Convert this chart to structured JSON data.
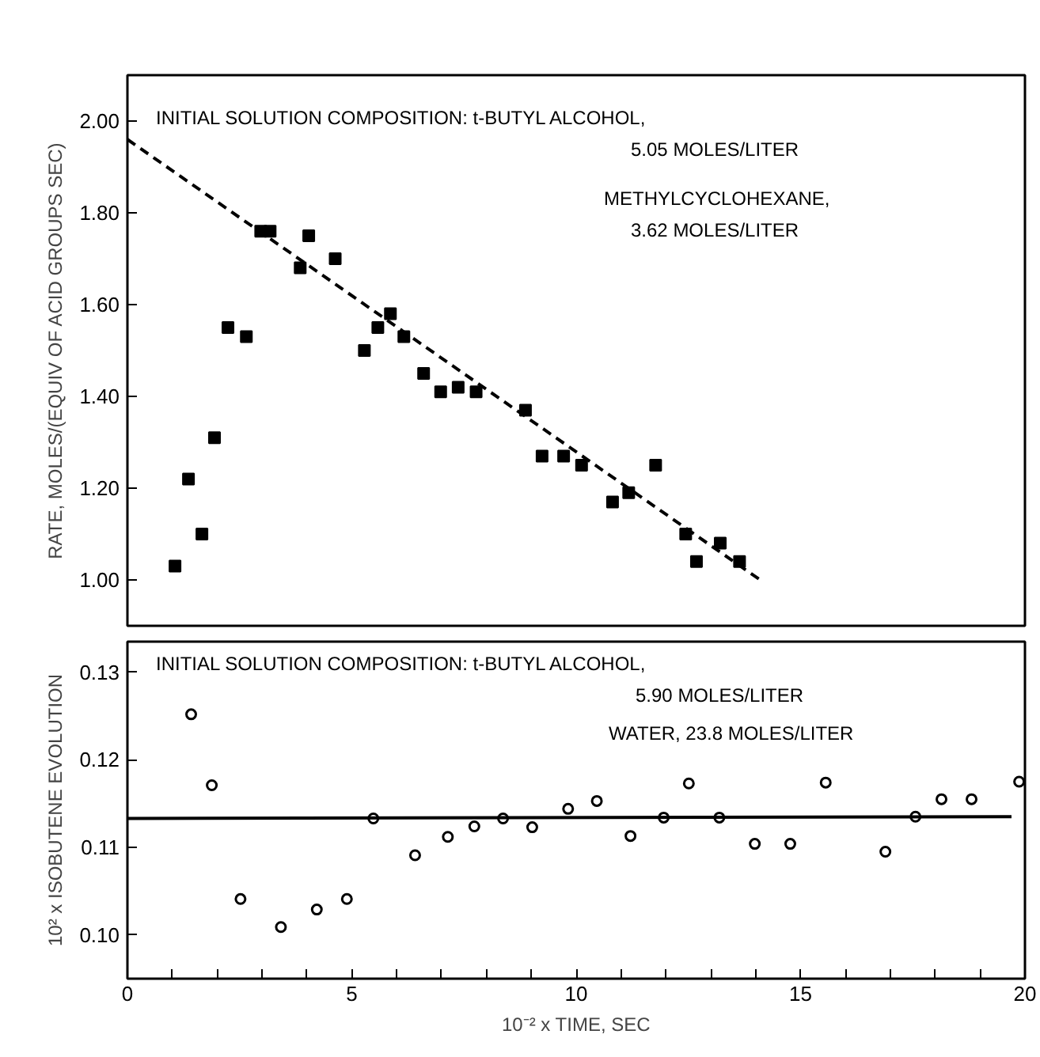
{
  "chart_data": [
    {
      "type": "scatter",
      "ylabel": "RATE, MOLES/(EQUIV OF ACID GROUPS SEC)",
      "xlim": [
        0,
        20
      ],
      "ylim": [
        0.9,
        2.1
      ],
      "tick_labels": "y",
      "grid": false,
      "yticks": [
        {
          "value": 1.0,
          "label": "1.00"
        },
        {
          "value": 1.2,
          "label": "1.20"
        },
        {
          "value": 1.4,
          "label": "1.40"
        },
        {
          "value": 1.6,
          "label": "1.60"
        },
        {
          "value": 1.8,
          "label": "1.80"
        },
        {
          "value": 2.0,
          "label": "2.00"
        }
      ],
      "annotations": [
        "INITIAL SOLUTION COMPOSITION: t-BUTYL ALCOHOL,",
        "5.05 MOLES/LITER",
        "METHYLCYCLOHEXANE,",
        "3.62 MOLES/LITER"
      ],
      "series": [
        {
          "marker": "square",
          "color": "#000000",
          "x": [
            1.06,
            1.36,
            1.66,
            1.94,
            2.24,
            2.65,
            2.97,
            3.18,
            3.85,
            4.04,
            4.63,
            5.28,
            5.58,
            5.86,
            6.16,
            6.6,
            6.98,
            7.37,
            7.77,
            8.87,
            9.24,
            9.72,
            10.12,
            10.81,
            11.17,
            11.77,
            12.44,
            12.68,
            13.21,
            13.64
          ],
          "values": [
            1.03,
            1.22,
            1.1,
            1.31,
            1.55,
            1.53,
            1.76,
            1.76,
            1.68,
            1.75,
            1.7,
            1.5,
            1.55,
            1.58,
            1.53,
            1.45,
            1.41,
            1.42,
            1.41,
            1.37,
            1.27,
            1.27,
            1.25,
            1.17,
            1.19,
            1.25,
            1.1,
            1.04,
            1.08,
            1.04
          ]
        },
        {
          "type": "line",
          "line_style": "dashed",
          "color": "#000000",
          "x": [
            0,
            14.1
          ],
          "values": [
            1.96,
            1.0
          ]
        }
      ]
    },
    {
      "type": "scatter",
      "ylabel": "10² x ISOBUTENE EVOLUTION",
      "xlabel": "10⁻² x TIME, SEC",
      "xlim": [
        0,
        20
      ],
      "ylim": [
        0.095,
        0.1335
      ],
      "grid": false,
      "xticks": [
        0,
        {
          "value": 1,
          "label": null
        },
        {
          "value": 2,
          "label": null
        },
        {
          "value": 3,
          "label": null
        },
        {
          "value": 4,
          "label": null
        },
        5,
        {
          "value": 6,
          "label": null
        },
        {
          "value": 7,
          "label": null
        },
        {
          "value": 8,
          "label": null
        },
        {
          "value": 9,
          "label": null
        },
        10,
        {
          "value": 11,
          "label": null
        },
        {
          "value": 12,
          "label": null
        },
        {
          "value": 13,
          "label": null
        },
        {
          "value": 14,
          "label": null
        },
        15,
        {
          "value": 16,
          "label": null
        },
        {
          "value": 17,
          "label": null
        },
        {
          "value": 18,
          "label": null
        },
        {
          "value": 19,
          "label": null
        },
        20
      ],
      "yticks": [
        {
          "value": 0.1,
          "label": "0.10"
        },
        0.11,
        0.12,
        0.13
      ],
      "annotations": [
        "INITIAL SOLUTION COMPOSITION: t-BUTYL ALCOHOL,",
        "5.90 MOLES/LITER",
        "WATER, 23.8 MOLES/LITER"
      ],
      "series": [
        {
          "marker": "circle",
          "color": "#000000",
          "x": [
            1.42,
            1.88,
            2.52,
            3.42,
            4.22,
            4.89,
            5.48,
            6.41,
            7.14,
            7.73,
            8.37,
            9.02,
            9.82,
            10.46,
            11.21,
            11.95,
            12.51,
            13.19,
            13.98,
            14.77,
            15.56,
            16.89,
            17.56,
            18.14,
            18.81,
            19.87
          ],
          "values": [
            0.1252,
            0.1171,
            0.1041,
            0.1009,
            0.1029,
            0.1041,
            0.1133,
            0.1091,
            0.1112,
            0.1124,
            0.1133,
            0.1123,
            0.1144,
            0.1153,
            0.1113,
            0.1134,
            0.1173,
            0.1134,
            0.1104,
            0.1104,
            0.1174,
            0.1095,
            0.1135,
            0.1155,
            0.1155,
            0.1175
          ]
        },
        {
          "type": "line",
          "line_style": "solid",
          "color": "#000000",
          "x": [
            0,
            19.7
          ],
          "values": [
            0.1133,
            0.1135
          ]
        }
      ]
    }
  ]
}
